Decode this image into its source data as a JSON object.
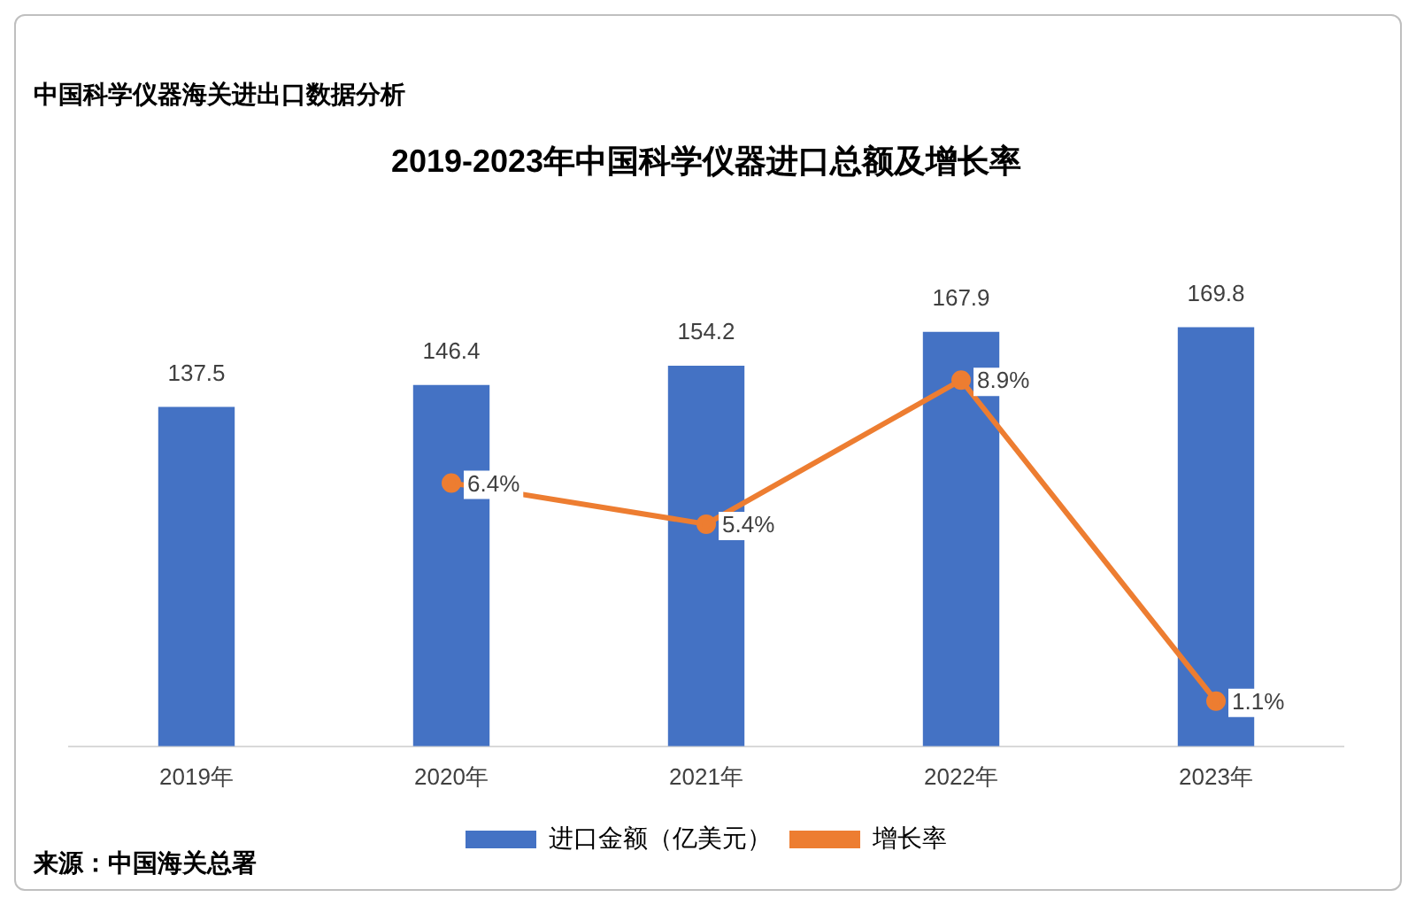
{
  "chart_data": {
    "type": "bar",
    "subtitle": "中国科学仪器海关进出口数据分析",
    "title": "2019-2023年中国科学仪器进口总额及增长率",
    "categories": [
      "2019年",
      "2020年",
      "2021年",
      "2022年",
      "2023年"
    ],
    "series": [
      {
        "name": "进口金额（亿美元）",
        "color": "#4472c4",
        "values": [
          137.5,
          146.4,
          154.2,
          167.9,
          169.8
        ],
        "value_labels": [
          "137.5",
          "146.4",
          "154.2",
          "167.9",
          "169.8"
        ]
      },
      {
        "name": "增长率",
        "type": "line",
        "axis": "y2",
        "color": "#ed7d31",
        "marker": "circle",
        "values": [
          null,
          6.4,
          5.4,
          8.9,
          1.1
        ],
        "value_labels": [
          null,
          "6.4%",
          "5.4%",
          "8.9%",
          "1.1%"
        ]
      }
    ],
    "tick_labels": "x",
    "grid": false,
    "legend": "bottom",
    "annotations": [
      "来源：中国海关总署"
    ]
  }
}
